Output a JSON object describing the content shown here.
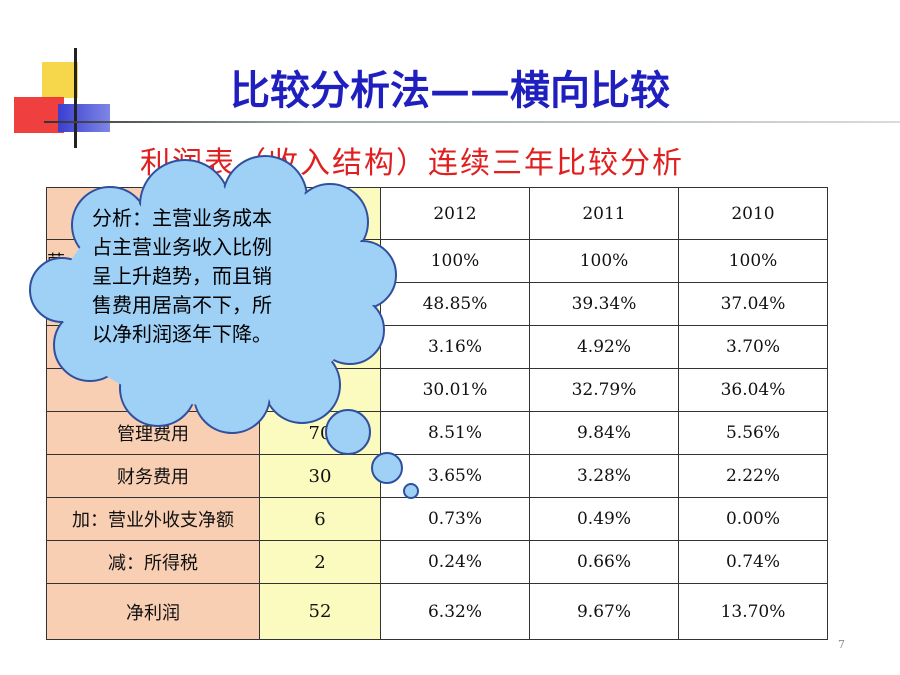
{
  "title": "比较分析法——横向比较",
  "subtitle": "利润表（收入结构）连续三年比较分析",
  "callout": {
    "lines": [
      "分析：主营业务成本",
      "占主营业务收入比例",
      "呈上升趋势，而且销",
      "售费用居高不下，所",
      "以净利润逐年下降。"
    ]
  },
  "table": {
    "header": [
      "",
      "",
      "2012",
      "2011",
      "2010"
    ],
    "rows": [
      {
        "item": "营",
        "amount": "",
        "y2012": "100%",
        "y2011": "100%",
        "y2010": "100%"
      },
      {
        "item": "",
        "amount": "",
        "y2012": "48.85%",
        "y2011": "39.34%",
        "y2010": "37.04%"
      },
      {
        "item": "",
        "amount": "",
        "y2012": "3.16%",
        "y2011": "4.92%",
        "y2010": "3.70%"
      },
      {
        "item": "",
        "amount": "",
        "y2012": "30.01%",
        "y2011": "32.79%",
        "y2010": "36.04%"
      },
      {
        "item": "管理费用",
        "amount": "70",
        "y2012": "8.51%",
        "y2011": "9.84%",
        "y2010": "5.56%"
      },
      {
        "item": "财务费用",
        "amount": "30",
        "y2012": "3.65%",
        "y2011": "3.28%",
        "y2010": "2.22%"
      },
      {
        "item": "加：营业外收支净额",
        "amount": "6",
        "y2012": "0.73%",
        "y2011": "0.49%",
        "y2010": "0.00%"
      },
      {
        "item": "减：所得税",
        "amount": "2",
        "y2012": "0.24%",
        "y2011": "0.66%",
        "y2010": "0.74%"
      },
      {
        "item": "净利润",
        "amount": "52",
        "y2012": "6.32%",
        "y2011": "9.67%",
        "y2010": "13.70%"
      }
    ]
  },
  "page_number": "7",
  "colors": {
    "title": "#1f1fbf",
    "subtitle": "#e02020",
    "col_item_bg": "#f8cfb3",
    "col_amount_bg": "#fbfabf",
    "cloud": "#9fd0f5"
  }
}
